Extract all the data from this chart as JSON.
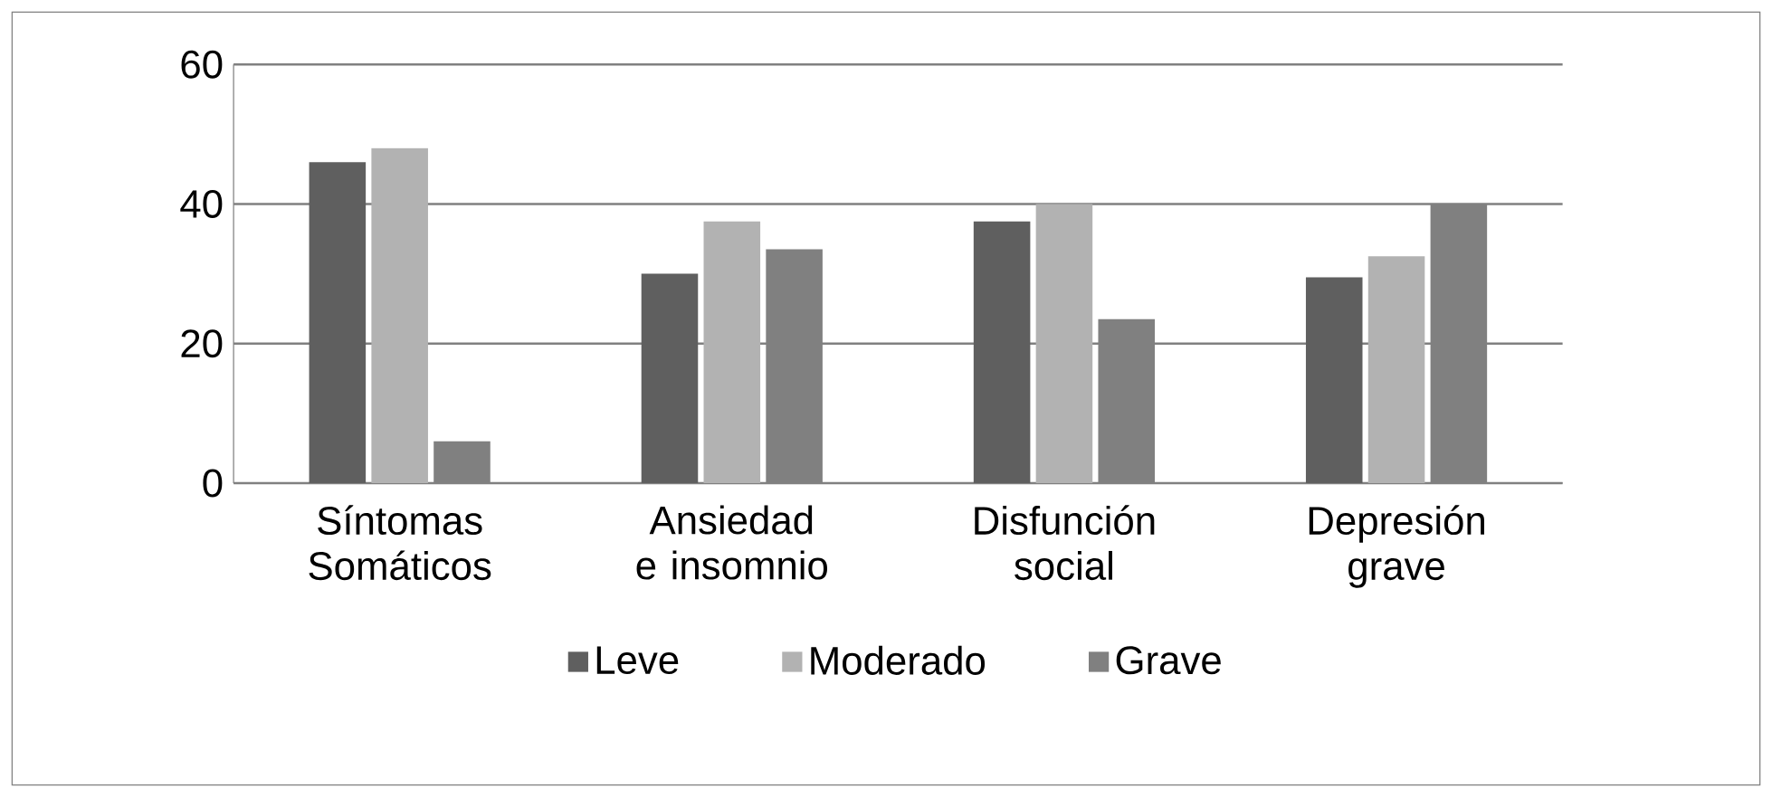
{
  "chart_data": {
    "type": "bar",
    "categories": [
      "Síntomas Somáticos",
      "Ansiedad e insomnio",
      "Disfunción social",
      "Depresión grave"
    ],
    "series": [
      {
        "name": "Leve",
        "color": "#5f5f5f",
        "values": [
          46,
          30,
          37.5,
          29.5
        ]
      },
      {
        "name": "Moderado",
        "color": "#b2b2b2",
        "values": [
          48,
          37.5,
          40,
          32.5
        ]
      },
      {
        "name": "Grave",
        "color": "#808080",
        "values": [
          6,
          33.5,
          23.5,
          40
        ]
      }
    ],
    "ylim": [
      0,
      60
    ],
    "yticks": [
      0,
      20,
      40,
      60
    ],
    "grid": "y",
    "legend": "bottom"
  }
}
